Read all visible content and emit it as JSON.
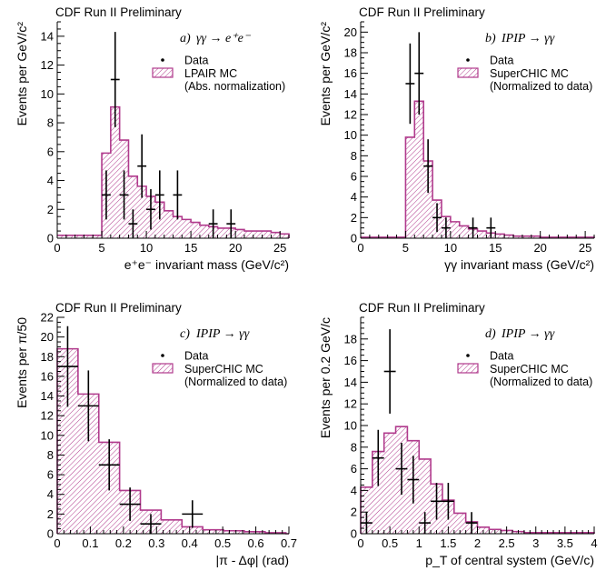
{
  "chart_data": [
    {
      "type": "bar",
      "header": "CDF Run II Preliminary",
      "panel_label": "a)",
      "process": "γγ → e⁺e⁻",
      "xlabel": "e⁺e⁻ invariant mass (GeV/c²)",
      "ylabel": "Events per GeV/c²",
      "xlim": [
        0,
        26
      ],
      "ylim": [
        0,
        15
      ],
      "xticks": [
        "0",
        "5",
        "10",
        "15",
        "20",
        "25"
      ],
      "xtick_values": [
        0,
        5,
        10,
        15,
        20,
        25
      ],
      "yticks": [
        "0",
        "2",
        "4",
        "6",
        "8",
        "10",
        "12",
        "14"
      ],
      "ytick_values": [
        0,
        2,
        4,
        6,
        8,
        10,
        12,
        14
      ],
      "legend": {
        "data_label": "Data",
        "mc_label": "LPAIR MC",
        "mc_note": "(Abs. normalization)"
      },
      "series": [
        {
          "name": "LPAIR MC",
          "kind": "histogram",
          "bin_width": 1,
          "bin_edges_start": 5,
          "values": [
            5.9,
            9.1,
            6.8,
            4.3,
            3.6,
            2.9,
            2.5,
            1.9,
            1.5,
            1.3,
            1.1,
            0.9,
            0.8,
            0.7,
            0.7,
            0.6,
            0.5,
            0.5,
            0.5,
            0.4,
            0.3
          ],
          "baseline": 0.2,
          "baseline_range": [
            0,
            26
          ]
        },
        {
          "name": "Data",
          "kind": "points",
          "x": [
            5.5,
            6.5,
            7.5,
            8.5,
            9.5,
            10.5,
            11.5,
            13.5,
            17.5,
            19.5
          ],
          "y": [
            3,
            11,
            3,
            1,
            5,
            2,
            3,
            3,
            1,
            1
          ],
          "xerr": [
            0.5,
            0.5,
            0.5,
            0.5,
            0.5,
            0.5,
            0.5,
            0.5,
            0.5,
            0.5
          ],
          "yerr_low": [
            1.7,
            3.3,
            1.7,
            1.0,
            2.2,
            1.4,
            1.7,
            1.7,
            1.0,
            1.0
          ],
          "yerr_high": [
            1.7,
            3.3,
            1.7,
            1.0,
            2.2,
            1.4,
            1.7,
            1.7,
            1.0,
            1.0
          ]
        }
      ]
    },
    {
      "type": "bar",
      "header": "CDF Run II Preliminary",
      "panel_label": "b)",
      "process": "IPIP → γγ",
      "xlabel": "γγ invariant mass (GeV/c²)",
      "ylabel": "Events per GeV/c²",
      "xlim": [
        0,
        26
      ],
      "ylim": [
        0,
        21
      ],
      "xticks": [
        "0",
        "5",
        "10",
        "15",
        "20",
        "25"
      ],
      "xtick_values": [
        0,
        5,
        10,
        15,
        20,
        25
      ],
      "yticks": [
        "0",
        "2",
        "4",
        "6",
        "8",
        "10",
        "12",
        "14",
        "16",
        "18",
        "20"
      ],
      "ytick_values": [
        0,
        2,
        4,
        6,
        8,
        10,
        12,
        14,
        16,
        18,
        20
      ],
      "legend": {
        "data_label": "Data",
        "mc_label": "SuperCHIC MC",
        "mc_note": "(Normalized to data)"
      },
      "series": [
        {
          "name": "SuperCHIC MC",
          "kind": "histogram",
          "bin_width": 1,
          "bin_edges_start": 5,
          "values": [
            9.8,
            13.3,
            7.5,
            3.7,
            2.1,
            1.6,
            1.2,
            0.9,
            0.7,
            0.5,
            0.4,
            0.3,
            0.2,
            0.2,
            0.2,
            0.1,
            0.1,
            0.1,
            0.1,
            0.1,
            0.1
          ],
          "baseline": 0.1,
          "baseline_range": [
            0,
            26
          ]
        },
        {
          "name": "Data",
          "kind": "points",
          "x": [
            5.5,
            6.5,
            7.5,
            8.5,
            9.5,
            12.5,
            14.5
          ],
          "y": [
            15,
            16,
            7,
            2,
            1,
            1,
            1
          ],
          "xerr": [
            0.5,
            0.5,
            0.5,
            0.5,
            0.5,
            0.5,
            0.5
          ],
          "yerr_low": [
            3.9,
            4.0,
            2.6,
            1.4,
            1.0,
            1.0,
            1.0
          ],
          "yerr_high": [
            3.9,
            4.0,
            2.6,
            1.4,
            1.0,
            1.0,
            1.0
          ]
        }
      ]
    },
    {
      "type": "bar",
      "header": "CDF Run II Preliminary",
      "panel_label": "c)",
      "process": "IPIP → γγ",
      "xlabel": "|π - Δφ| (rad)",
      "ylabel": "Events per π/50",
      "xlim": [
        0,
        0.7
      ],
      "ylim": [
        0,
        22
      ],
      "xticks": [
        "0",
        "0.1",
        "0.2",
        "0.3",
        "0.4",
        "0.5",
        "0.6",
        "0.7"
      ],
      "xtick_values": [
        0,
        0.1,
        0.2,
        0.3,
        0.4,
        0.5,
        0.6,
        0.7
      ],
      "yticks": [
        "0",
        "2",
        "4",
        "6",
        "8",
        "10",
        "12",
        "14",
        "16",
        "18",
        "20",
        "22"
      ],
      "ytick_values": [
        0,
        2,
        4,
        6,
        8,
        10,
        12,
        14,
        16,
        18,
        20,
        22
      ],
      "legend": {
        "data_label": "Data",
        "mc_label": "SuperCHIC MC",
        "mc_note": "(Normalized to data)"
      },
      "series": [
        {
          "name": "SuperCHIC MC",
          "kind": "histogram",
          "bin_width": 0.0628,
          "bin_edges_start": 0,
          "values": [
            18.8,
            14.2,
            9.3,
            4.4,
            2.4,
            1.4,
            0.7,
            0.4,
            0.3,
            0.2,
            0.1
          ],
          "baseline": 0,
          "baseline_range": [
            0,
            0.7
          ]
        },
        {
          "name": "Data",
          "kind": "points",
          "x": [
            0.0314,
            0.0942,
            0.157,
            0.2199,
            0.2827,
            0.4084
          ],
          "y": [
            17,
            13,
            7,
            3,
            1,
            2
          ],
          "xerr": [
            0.0314,
            0.0314,
            0.0314,
            0.0314,
            0.0314,
            0.0314
          ],
          "yerr_low": [
            4.1,
            3.6,
            2.6,
            1.7,
            1.0,
            1.4
          ],
          "yerr_high": [
            4.1,
            3.6,
            2.6,
            1.7,
            1.0,
            1.4
          ]
        }
      ]
    },
    {
      "type": "bar",
      "header": "CDF Run II Preliminary",
      "panel_label": "d)",
      "process": "IPIP → γγ",
      "xlabel": "p_T of central system (GeV/c)",
      "ylabel": "Events per 0.2 GeV/c",
      "xlim": [
        0,
        4
      ],
      "ylim": [
        0,
        20
      ],
      "xticks": [
        "0",
        "0.5",
        "1",
        "1.5",
        "2",
        "2.5",
        "3",
        "3.5",
        "4"
      ],
      "xtick_values": [
        0,
        0.5,
        1,
        1.5,
        2,
        2.5,
        3,
        3.5,
        4
      ],
      "yticks": [
        "0",
        "2",
        "4",
        "6",
        "8",
        "10",
        "12",
        "14",
        "16",
        "18"
      ],
      "ytick_values": [
        0,
        2,
        4,
        6,
        8,
        10,
        12,
        14,
        16,
        18
      ],
      "legend": {
        "data_label": "Data",
        "mc_label": "SuperCHIC MC",
        "mc_note": "(Normalized to data)"
      },
      "series": [
        {
          "name": "SuperCHIC MC",
          "kind": "histogram",
          "bin_width": 0.2,
          "bin_edges_start": 0,
          "values": [
            4.3,
            7.6,
            9.3,
            9.9,
            8.6,
            6.9,
            4.6,
            3.1,
            1.9,
            1.1,
            0.6,
            0.4,
            0.3,
            0.2,
            0.1,
            0.1,
            0.1,
            0.1,
            0.1,
            0.1
          ],
          "baseline": 0,
          "baseline_range": [
            0,
            4
          ]
        },
        {
          "name": "Data",
          "kind": "points",
          "x": [
            0.1,
            0.3,
            0.5,
            0.7,
            0.9,
            1.1,
            1.3,
            1.5,
            1.9
          ],
          "y": [
            1,
            7,
            15,
            6,
            5,
            1,
            3,
            3,
            1
          ],
          "xerr": [
            0.1,
            0.1,
            0.1,
            0.1,
            0.1,
            0.1,
            0.1,
            0.1,
            0.1
          ],
          "yerr_low": [
            1.0,
            2.6,
            3.9,
            2.4,
            2.2,
            1.0,
            1.7,
            1.7,
            1.0
          ],
          "yerr_high": [
            1.0,
            2.6,
            3.9,
            2.4,
            2.2,
            1.0,
            1.7,
            1.7,
            1.0
          ]
        }
      ]
    }
  ],
  "colors": {
    "mc": "#b03a8c",
    "data": "#000000",
    "axis": "#000000"
  }
}
